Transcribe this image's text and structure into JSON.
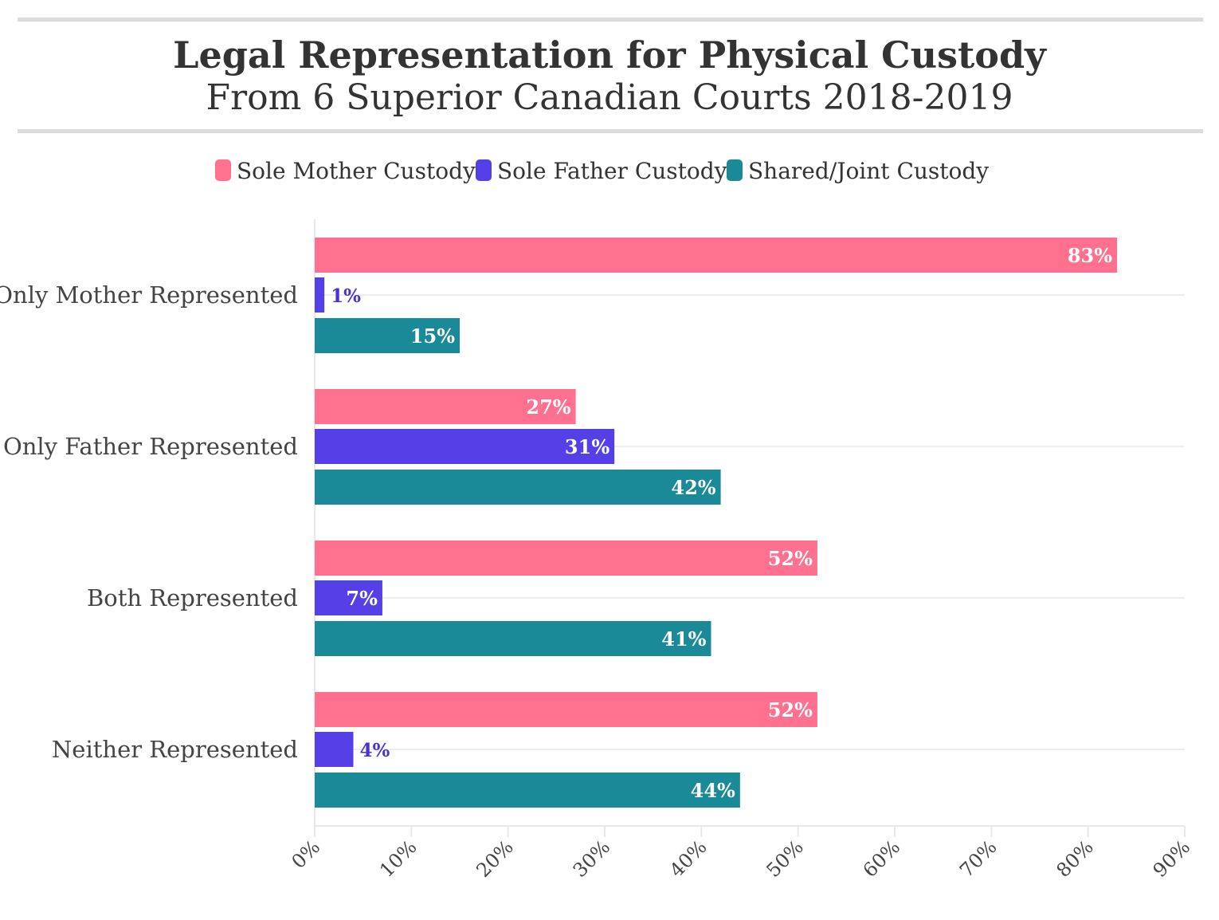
{
  "chart_data": {
    "type": "bar",
    "orientation": "horizontal",
    "title": "Legal Representation for Physical Custody",
    "subtitle": "From 6 Superior Canadian Courts 2018-2019",
    "categories": [
      "Only Mother Represented",
      "Only Father Represented",
      "Both Represented",
      "Neither Represented"
    ],
    "series": [
      {
        "name": "Sole Mother Custody",
        "color": "#ff718e",
        "values": [
          83,
          27,
          52,
          52
        ]
      },
      {
        "name": "Sole Father Custody",
        "color": "#5540e8",
        "values": [
          1,
          31,
          7,
          4
        ]
      },
      {
        "name": "Shared/Joint Custody",
        "color": "#1a8a98",
        "values": [
          15,
          42,
          41,
          44
        ]
      }
    ],
    "xlim": [
      0,
      90
    ],
    "xticks": [
      "0%",
      "10%",
      "20%",
      "30%",
      "40%",
      "50%",
      "60%",
      "70%",
      "80%",
      "90%"
    ],
    "value_suffix": "%",
    "legend_position": "top",
    "grid": true
  }
}
